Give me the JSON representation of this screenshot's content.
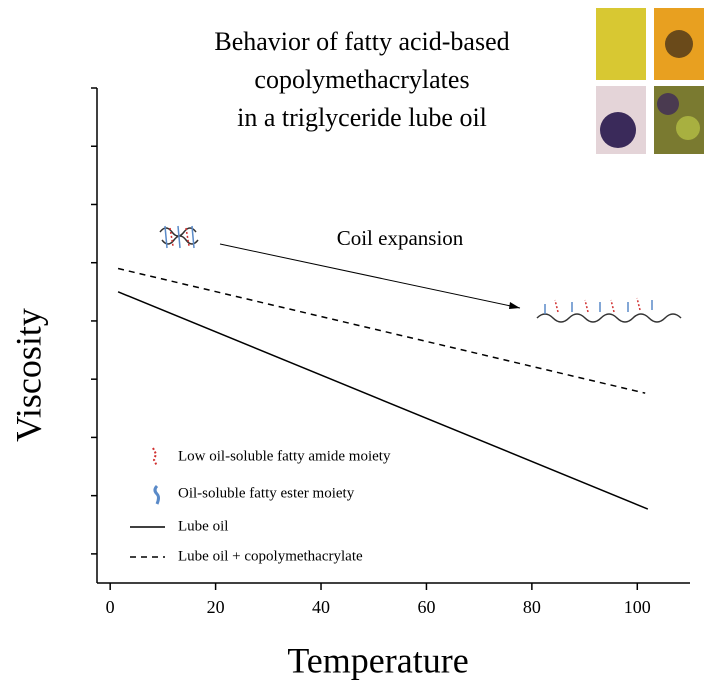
{
  "chart_data": {
    "type": "line",
    "title": [
      "Behavior of fatty acid-based",
      "copolymethacrylates",
      "in a triglyceride lube oil"
    ],
    "x_label": "Temperature",
    "y_label": "Viscosity",
    "annotation": "Coil expansion",
    "moiety_labels": [
      "Low oil-soluble fatty amide moiety",
      "Oil-soluble fatty ester moiety"
    ],
    "xlim": [
      -2.5,
      110
    ],
    "xticks": [
      0,
      20,
      40,
      60,
      80,
      100
    ],
    "ylim": [
      0,
      8.5
    ],
    "yticks": [
      0.5,
      1.5,
      2.5,
      3.5,
      4.5,
      5.5,
      6.5,
      7.5,
      8.5
    ],
    "series": [
      {
        "name": "Lube oil",
        "color": "#000000",
        "dashed": false,
        "x": [
          1.5,
          102
        ],
        "values": [
          5.0,
          1.27
        ]
      },
      {
        "name": "Lube oil + copolymethacrylate",
        "color": "#000000",
        "dashed": true,
        "x": [
          1.5,
          101.5
        ],
        "values": [
          5.4,
          3.26
        ]
      }
    ]
  }
}
